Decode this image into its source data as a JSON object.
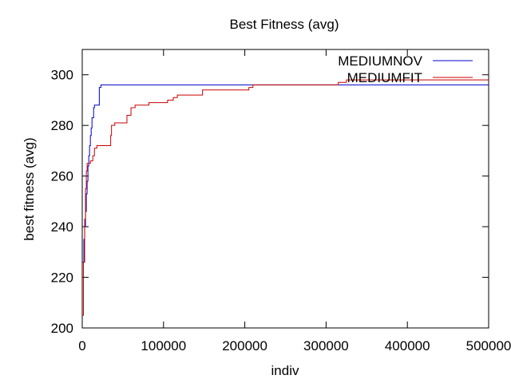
{
  "chart_data": {
    "type": "line",
    "title": "Best Fitness (avg)",
    "xlabel": "indiv",
    "ylabel": "best fitness (avg)",
    "xlim": [
      0,
      500000
    ],
    "ylim": [
      200,
      310
    ],
    "x_ticks": [
      0,
      100000,
      200000,
      300000,
      400000,
      500000
    ],
    "x_tick_labels": [
      "0",
      "100000",
      "200000",
      "300000",
      "400000",
      "500000"
    ],
    "y_ticks": [
      200,
      220,
      240,
      260,
      280,
      300
    ],
    "y_tick_labels": [
      "200",
      "220",
      "240",
      "260",
      "280",
      "300"
    ],
    "grid": false,
    "legend_position": "top-right",
    "series": [
      {
        "name": "MEDIUMNOV",
        "color": "#0000cc",
        "points": [
          [
            0,
            226
          ],
          [
            2000,
            226
          ],
          [
            2000,
            235
          ],
          [
            3000,
            235
          ],
          [
            3000,
            240
          ],
          [
            4000,
            240
          ],
          [
            4000,
            246
          ],
          [
            5000,
            246
          ],
          [
            5000,
            253
          ],
          [
            6000,
            253
          ],
          [
            6000,
            258
          ],
          [
            7000,
            258
          ],
          [
            7000,
            264
          ],
          [
            8000,
            264
          ],
          [
            8000,
            268
          ],
          [
            9000,
            268
          ],
          [
            9000,
            272
          ],
          [
            10000,
            272
          ],
          [
            10000,
            276
          ],
          [
            11000,
            276
          ],
          [
            11000,
            279
          ],
          [
            12000,
            279
          ],
          [
            12000,
            283
          ],
          [
            14000,
            283
          ],
          [
            14000,
            287
          ],
          [
            15000,
            287
          ],
          [
            15000,
            288
          ],
          [
            21000,
            288
          ],
          [
            21000,
            295
          ],
          [
            23000,
            295
          ],
          [
            23000,
            296
          ],
          [
            500000,
            296
          ]
        ]
      },
      {
        "name": "MEDIUMFIT",
        "color": "#cc0000",
        "points": [
          [
            0,
            205
          ],
          [
            1500,
            205
          ],
          [
            1500,
            226
          ],
          [
            3000,
            226
          ],
          [
            3000,
            243
          ],
          [
            4000,
            243
          ],
          [
            4000,
            255
          ],
          [
            5000,
            255
          ],
          [
            5000,
            262
          ],
          [
            6000,
            262
          ],
          [
            6000,
            265
          ],
          [
            10000,
            265
          ],
          [
            10000,
            266
          ],
          [
            13000,
            266
          ],
          [
            13000,
            268
          ],
          [
            15000,
            268
          ],
          [
            15000,
            271
          ],
          [
            18000,
            271
          ],
          [
            18000,
            272
          ],
          [
            35000,
            272
          ],
          [
            35000,
            276
          ],
          [
            36000,
            276
          ],
          [
            36000,
            280
          ],
          [
            40000,
            280
          ],
          [
            40000,
            281
          ],
          [
            55000,
            281
          ],
          [
            55000,
            284
          ],
          [
            60000,
            284
          ],
          [
            60000,
            287
          ],
          [
            65000,
            287
          ],
          [
            65000,
            288
          ],
          [
            82000,
            288
          ],
          [
            82000,
            289
          ],
          [
            105000,
            289
          ],
          [
            105000,
            290
          ],
          [
            112000,
            290
          ],
          [
            112000,
            291
          ],
          [
            117000,
            291
          ],
          [
            117000,
            292
          ],
          [
            148000,
            292
          ],
          [
            148000,
            294
          ],
          [
            205000,
            294
          ],
          [
            205000,
            295
          ],
          [
            210000,
            295
          ],
          [
            210000,
            296
          ],
          [
            315000,
            296
          ],
          [
            315000,
            297
          ],
          [
            325000,
            297
          ],
          [
            325000,
            298
          ],
          [
            500000,
            298
          ]
        ]
      }
    ]
  }
}
